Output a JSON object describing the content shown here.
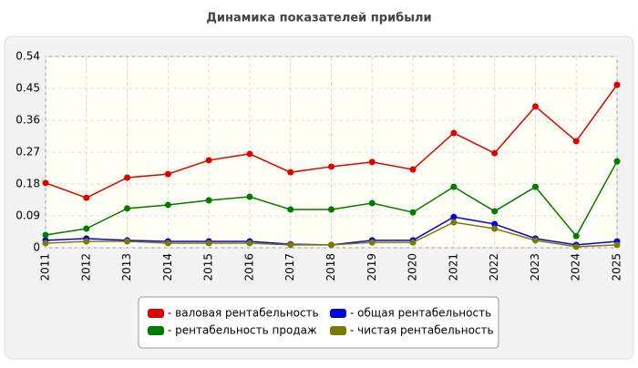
{
  "chart_data": {
    "type": "line",
    "title": "Динамика показателей прибыли",
    "categories": [
      "2011",
      "2012",
      "2013",
      "2014",
      "2015",
      "2016",
      "2017",
      "2018",
      "2019",
      "2020",
      "2021",
      "2022",
      "2023",
      "2024",
      "2025"
    ],
    "series": [
      {
        "name": "- валовая рентабельность",
        "color": "#e00000",
        "values": [
          0.183,
          0.141,
          0.198,
          0.208,
          0.247,
          0.265,
          0.213,
          0.229,
          0.242,
          0.221,
          0.324,
          0.267,
          0.399,
          0.301,
          0.46
        ]
      },
      {
        "name": "- общая рентабельность",
        "color": "#0000e0",
        "values": [
          0.021,
          0.026,
          0.021,
          0.018,
          0.018,
          0.018,
          0.01,
          0.008,
          0.021,
          0.021,
          0.087,
          0.067,
          0.026,
          0.008,
          0.018
        ]
      },
      {
        "name": "- рентабельность продаж",
        "color": "#007a00",
        "values": [
          0.036,
          0.054,
          0.111,
          0.121,
          0.134,
          0.144,
          0.108,
          0.108,
          0.126,
          0.1,
          0.172,
          0.103,
          0.172,
          0.033,
          0.244
        ]
      },
      {
        "name": "- чистая рентабельность",
        "color": "#7a7a00",
        "values": [
          0.013,
          0.018,
          0.018,
          0.013,
          0.013,
          0.013,
          0.008,
          0.008,
          0.015,
          0.015,
          0.072,
          0.054,
          0.021,
          0.003,
          0.008
        ]
      }
    ],
    "ylim": [
      0,
      0.54
    ],
    "yticks": [
      0,
      0.09,
      0.18,
      0.27,
      0.36,
      0.45,
      0.54
    ],
    "grid": true
  }
}
